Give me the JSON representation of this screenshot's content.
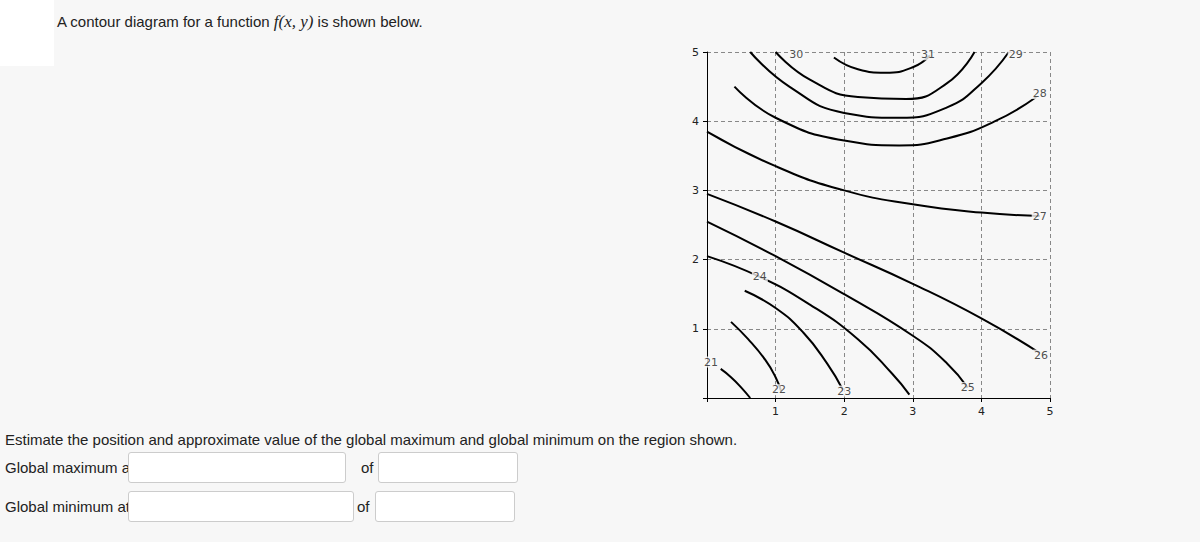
{
  "intro": {
    "before": "A contour diagram for a function ",
    "math": "f(x, y)",
    "after": " is shown below."
  },
  "question": "Estimate the position and approximate value of the global maximum and global minimum on the region shown.",
  "form": {
    "max_label": "Global maximum at",
    "max_of": "of",
    "min_label": "Global minimum at",
    "min_of": "of"
  },
  "chart_data": {
    "type": "contour",
    "color": "#000000",
    "grid": true,
    "xlim": [
      0,
      5
    ],
    "ylim": [
      0,
      5
    ],
    "xticks": [
      1,
      2,
      3,
      4,
      5
    ],
    "yticks": [
      1,
      2,
      3,
      4,
      5
    ],
    "series": [
      {
        "level": 21,
        "x": [
          0.2,
          0.35,
          0.5,
          0.63
        ],
        "y": [
          0.42,
          0.3,
          0.15,
          0
        ],
        "label_at": [
          0.06,
          0.52
        ]
      },
      {
        "level": 22,
        "x": [
          0.35,
          0.6,
          0.85,
          1.0,
          1.08
        ],
        "y": [
          1.1,
          0.85,
          0.55,
          0.3,
          0.1
        ],
        "label_at": [
          1.05,
          0.12
        ]
      },
      {
        "level": 23,
        "x": [
          0.55,
          1.0,
          1.4,
          1.75,
          1.98
        ],
        "y": [
          1.55,
          1.3,
          0.95,
          0.5,
          0.12
        ],
        "label_at": [
          2.0,
          0.1
        ]
      },
      {
        "level": 24,
        "x": [
          0,
          0.77,
          1.5,
          2.2,
          2.7,
          2.95
        ],
        "y": [
          2.05,
          1.75,
          1.35,
          0.85,
          0.35,
          0.05
        ],
        "label_at": [
          0.77,
          1.75
        ]
      },
      {
        "level": 25,
        "x": [
          0,
          1,
          2,
          3,
          3.5,
          3.8
        ],
        "y": [
          2.55,
          2.05,
          1.5,
          0.9,
          0.5,
          0.15
        ],
        "label_at": [
          3.8,
          0.15
        ]
      },
      {
        "level": 26,
        "x": [
          0,
          1,
          2,
          3,
          4,
          4.85
        ],
        "y": [
          2.95,
          2.55,
          2.1,
          1.65,
          1.15,
          0.65
        ],
        "label_at": [
          4.87,
          0.62
        ]
      },
      {
        "level": 27,
        "x": [
          0,
          1,
          2,
          3,
          4,
          4.85
        ],
        "y": [
          3.85,
          3.35,
          3.0,
          2.8,
          2.68,
          2.63
        ],
        "label_at": [
          4.85,
          2.63
        ]
      },
      {
        "level": 28,
        "x": [
          0.4,
          1,
          2,
          2.8,
          3.5,
          4.2,
          4.8
        ],
        "y": [
          4.5,
          4.05,
          3.72,
          3.65,
          3.75,
          4.0,
          4.35
        ],
        "label_at": [
          4.85,
          4.4
        ]
      },
      {
        "level": 29,
        "x": [
          0.63,
          1.2,
          2,
          2.8,
          3.5,
          4.0,
          4.4
        ],
        "y": [
          5,
          4.5,
          4.12,
          4.05,
          4.2,
          4.55,
          5
        ],
        "label_at": [
          4.5,
          4.96
        ]
      },
      {
        "level": 30,
        "x": [
          1.0,
          1.5,
          2.2,
          2.9,
          3.5,
          3.9
        ],
        "y": [
          5,
          4.6,
          4.35,
          4.32,
          4.55,
          5
        ],
        "label_at": [
          1.3,
          4.96
        ]
      },
      {
        "level": 31,
        "x": [
          1.85,
          2.2,
          2.6,
          3.0,
          3.25
        ],
        "y": [
          4.92,
          4.75,
          4.7,
          4.78,
          4.95
        ],
        "label_at": [
          3.22,
          4.96
        ]
      }
    ]
  }
}
